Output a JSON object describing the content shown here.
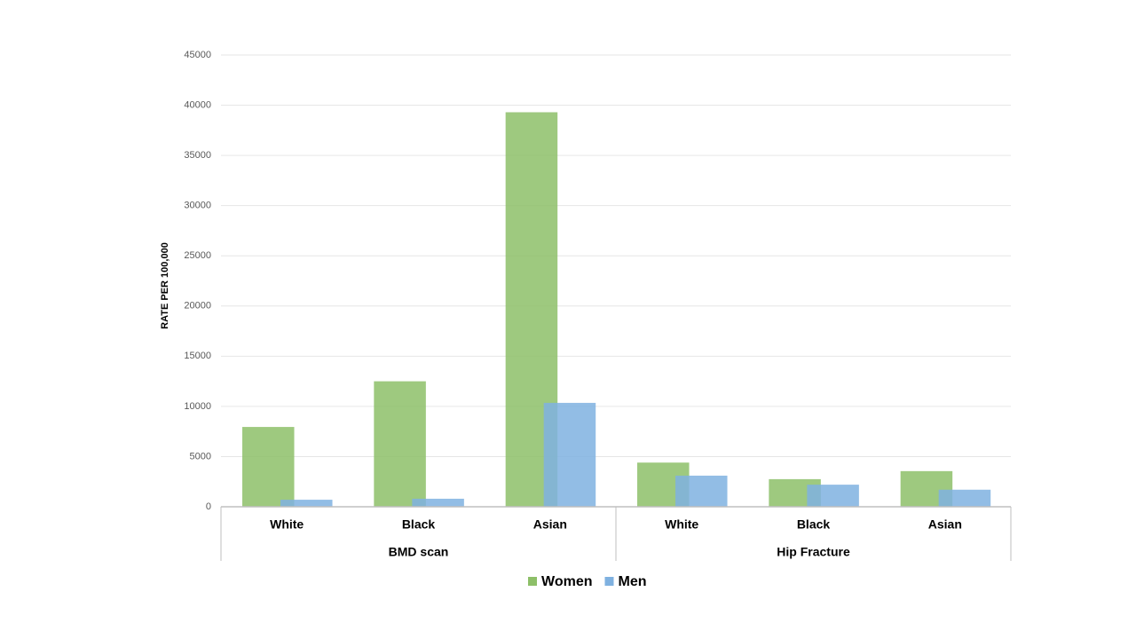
{
  "chart_data": {
    "type": "bar",
    "y_label": "RATE PER 100,000",
    "groups": [
      {
        "label": "BMD scan",
        "categories": [
          "White",
          "Black",
          "Asian"
        ]
      },
      {
        "label": "Hip Fracture",
        "categories": [
          "White",
          "Black",
          "Asian"
        ]
      }
    ],
    "series": [
      {
        "name": "Women",
        "color": "#8dbf68",
        "values": [
          7950,
          12500,
          39300,
          4400,
          2750,
          3550
        ]
      },
      {
        "name": "Men",
        "color": "#7fb1e0",
        "values": [
          700,
          800,
          10350,
          3100,
          2200,
          1700
        ]
      }
    ],
    "ylim": [
      0,
      45000
    ],
    "yticks": [
      0,
      5000,
      10000,
      15000,
      20000,
      25000,
      30000,
      35000,
      40000,
      45000
    ],
    "grid": true,
    "legend": "bottom"
  }
}
